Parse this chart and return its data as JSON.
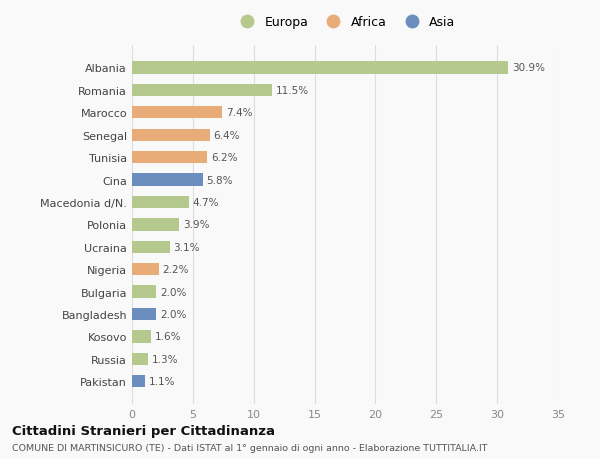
{
  "categories": [
    "Albania",
    "Romania",
    "Marocco",
    "Senegal",
    "Tunisia",
    "Cina",
    "Macedonia d/N.",
    "Polonia",
    "Ucraina",
    "Nigeria",
    "Bulgaria",
    "Bangladesh",
    "Kosovo",
    "Russia",
    "Pakistan"
  ],
  "values": [
    30.9,
    11.5,
    7.4,
    6.4,
    6.2,
    5.8,
    4.7,
    3.9,
    3.1,
    2.2,
    2.0,
    2.0,
    1.6,
    1.3,
    1.1
  ],
  "continents": [
    "Europa",
    "Europa",
    "Africa",
    "Africa",
    "Africa",
    "Asia",
    "Europa",
    "Europa",
    "Europa",
    "Africa",
    "Europa",
    "Asia",
    "Europa",
    "Europa",
    "Asia"
  ],
  "colors": {
    "Europa": "#b5c98e",
    "Africa": "#e8ac78",
    "Asia": "#6b8ebf"
  },
  "legend_labels": [
    "Europa",
    "Africa",
    "Asia"
  ],
  "xlim": [
    0,
    35
  ],
  "xticks": [
    0,
    5,
    10,
    15,
    20,
    25,
    30,
    35
  ],
  "title": "Cittadini Stranieri per Cittadinanza",
  "subtitle": "COMUNE DI MARTINSICURO (TE) - Dati ISTAT al 1° gennaio di ogni anno - Elaborazione TUTTITALIA.IT",
  "bg_color": "#f9f9f9",
  "grid_color": "#dddddd",
  "bar_height": 0.55
}
